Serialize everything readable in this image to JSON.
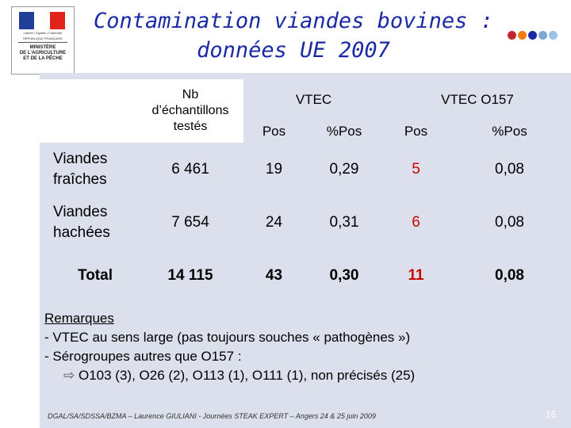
{
  "logo": {
    "motto": "Liberté • Égalité • Fraternité",
    "republic": "RÉPUBLIQUE FRANÇAISE",
    "ministry_line1": "MINISTÈRE",
    "ministry_line2": "DE L'AGRICULTURE",
    "ministry_line3": "ET DE LA PÊCHE",
    "flag_colors": [
      "#1f3f99",
      "#ffffff",
      "#e2231a"
    ]
  },
  "title": {
    "line1": "Contamination viandes bovines :",
    "line2": "données UE 2007",
    "color": "#1a2aa6"
  },
  "decor_dots": [
    "#c1272d",
    "#f07d12",
    "#1a2aa6",
    "#7ea6d6",
    "#9cc2e8"
  ],
  "table": {
    "header": {
      "nb_line1": "Nb",
      "nb_line2": "d’échantillons",
      "nb_line3": "testés",
      "vtec": "VTEC",
      "vtec_o157": "VTEC O157",
      "pos": "Pos",
      "pct_pos": "%Pos"
    },
    "rows": [
      {
        "label_line1": "Viandes",
        "label_line2": "fraîches",
        "nb": "6 461",
        "vtec_pos": "19",
        "vtec_pct": "0,29",
        "o157_pos": "5",
        "o157_pct": "0,08"
      },
      {
        "label_line1": "Viandes",
        "label_line2": "hachées",
        "nb": "7 654",
        "vtec_pos": "24",
        "vtec_pct": "0,31",
        "o157_pos": "6",
        "o157_pct": "0,08"
      }
    ],
    "total": {
      "label": "Total",
      "nb": "14 115",
      "vtec_pos": "43",
      "vtec_pct": "0,30",
      "o157_pos": "11",
      "o157_pct": "0,08"
    },
    "highlight_color": "#cc0000"
  },
  "remarks": {
    "heading": "Remarques",
    "line1": "- VTEC au sens large (pas toujours souches « pathogènes »)",
    "line2": "- Sérogroupes autres que O157 :",
    "arrow": "⇨",
    "line3": "O103 (3), O26 (2), O113 (1), O111 (1), non précisés (25)"
  },
  "footer": "DGAL/SA/SDSSA/BZMA – Laurence GIULIANI - Journées STEAK EXPERT – Angers 24 & 25 juin 2009",
  "page_number": "16"
}
